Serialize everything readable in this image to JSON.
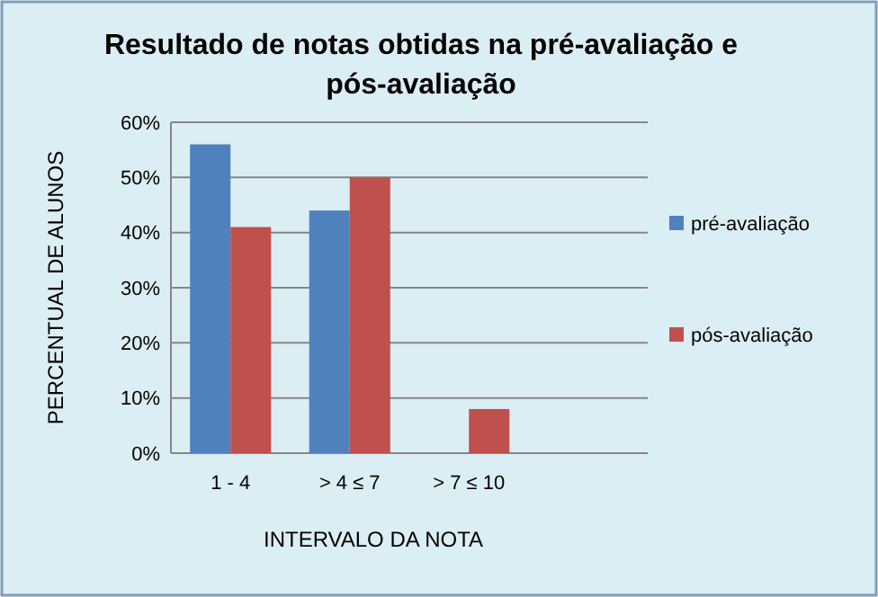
{
  "chart_data": {
    "type": "bar",
    "title": "Resultado de notas obtidas na pré-avaliação e pós-avaliação",
    "xlabel": "INTERVALO DA NOTA",
    "ylabel": "PERCENTUAL DE ALUNOS",
    "categories": [
      "1 - 4",
      "> 4 ≤ 7",
      "> 7 ≤ 10",
      null
    ],
    "series": [
      {
        "name": "pré-avaliação",
        "color": "#4f81bd",
        "values": [
          56,
          44,
          0,
          null
        ]
      },
      {
        "name": "pós-avaliação",
        "color": "#c0504d",
        "values": [
          41,
          50,
          8,
          null
        ]
      }
    ],
    "ylim": [
      0,
      60
    ],
    "yticks": [
      {
        "value": 0,
        "label": "0%"
      },
      {
        "value": 10,
        "label": "10%"
      },
      {
        "value": 20,
        "label": "20%"
      },
      {
        "value": 30,
        "label": "30%"
      },
      {
        "value": 40,
        "label": "40%"
      },
      {
        "value": 50,
        "label": "50%"
      },
      {
        "value": 60,
        "label": "60%"
      }
    ],
    "grid": "y",
    "legend": "right"
  }
}
